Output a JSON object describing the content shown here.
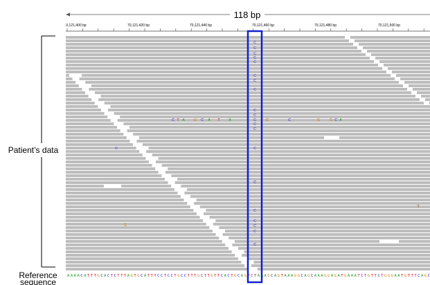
{
  "header": {
    "span": "118 bp",
    "ruler_labels": [
      "0,121,400 bp",
      "70,121,420 bp",
      "70,121,440 bp",
      "70,121,460 bp",
      "70,121,480 bp",
      "70,121,500 bp"
    ]
  },
  "labels": {
    "patient": "Patient’s data",
    "reference": "Reference",
    "reference_2": "sequence"
  },
  "highlight_bases": [
    "C",
    "C",
    "C",
    "C",
    "C",
    "C",
    "C",
    "C",
    "C",
    "C",
    "C",
    "C",
    "C",
    "C",
    "C",
    "C",
    "C",
    "C",
    "C",
    "C"
  ],
  "mismatches": [
    "C",
    "T",
    "A",
    "G",
    "C",
    "A",
    "T",
    "A",
    "G",
    "C",
    "G",
    "G",
    "C",
    "A",
    "C",
    "G",
    "T"
  ],
  "reference_sequence": "AAAACATTTGCACTCTTTAGTGCATTTCCTCCTGCCTTTGCTTGTTCACTGCAGTCTAAAGCAGTAAAGGCAGCAAAGGAGATGAAATCTGTTCTGGGAATGTTTCAGC"
}
